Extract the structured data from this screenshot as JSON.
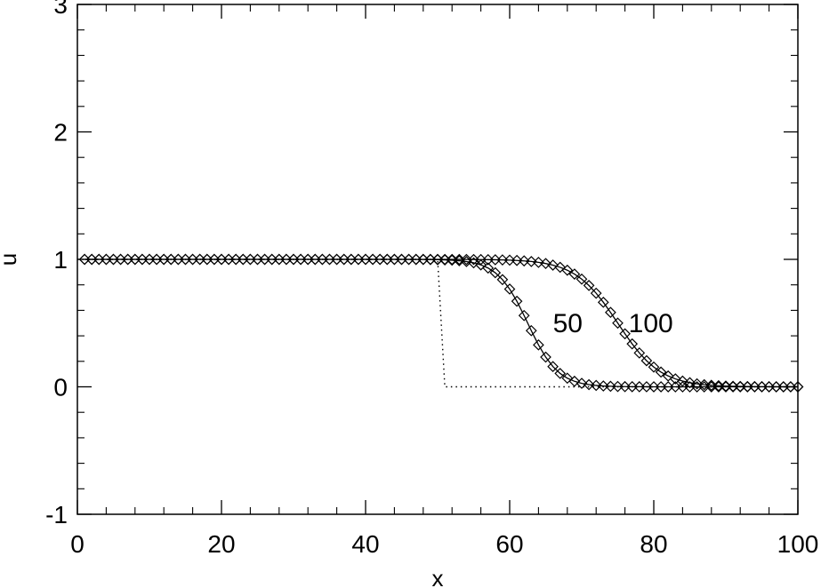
{
  "chart_data": {
    "type": "line",
    "title": "",
    "xlabel": "x",
    "ylabel": "u",
    "xlim": [
      0,
      100
    ],
    "ylim": [
      -1,
      3
    ],
    "x_ticks": [
      0,
      20,
      40,
      60,
      80,
      100
    ],
    "x_tick_labels": [
      "0",
      "20",
      "40",
      "60",
      "80",
      "100"
    ],
    "y_ticks": [
      -1,
      0,
      1,
      2,
      3
    ],
    "y_tick_labels": [
      "-1",
      "0",
      "1",
      "2",
      "3"
    ],
    "grid": false,
    "legend": "none",
    "series": [
      {
        "style": "dotted",
        "marker": "none",
        "x": [
          0,
          50,
          51,
          100
        ],
        "y": [
          1,
          1,
          0,
          0
        ]
      },
      {
        "style": "solid",
        "marker": "diamond",
        "front": {
          "center": 62.5,
          "width": 4.2
        }
      },
      {
        "style": "solid",
        "marker": "diamond",
        "front": {
          "center": 75,
          "width": 5.9
        }
      }
    ],
    "annotations": [
      {
        "text": "50",
        "x": 66,
        "y": 0.5
      },
      {
        "text": "100",
        "x": 76.5,
        "y": 0.5
      }
    ]
  }
}
